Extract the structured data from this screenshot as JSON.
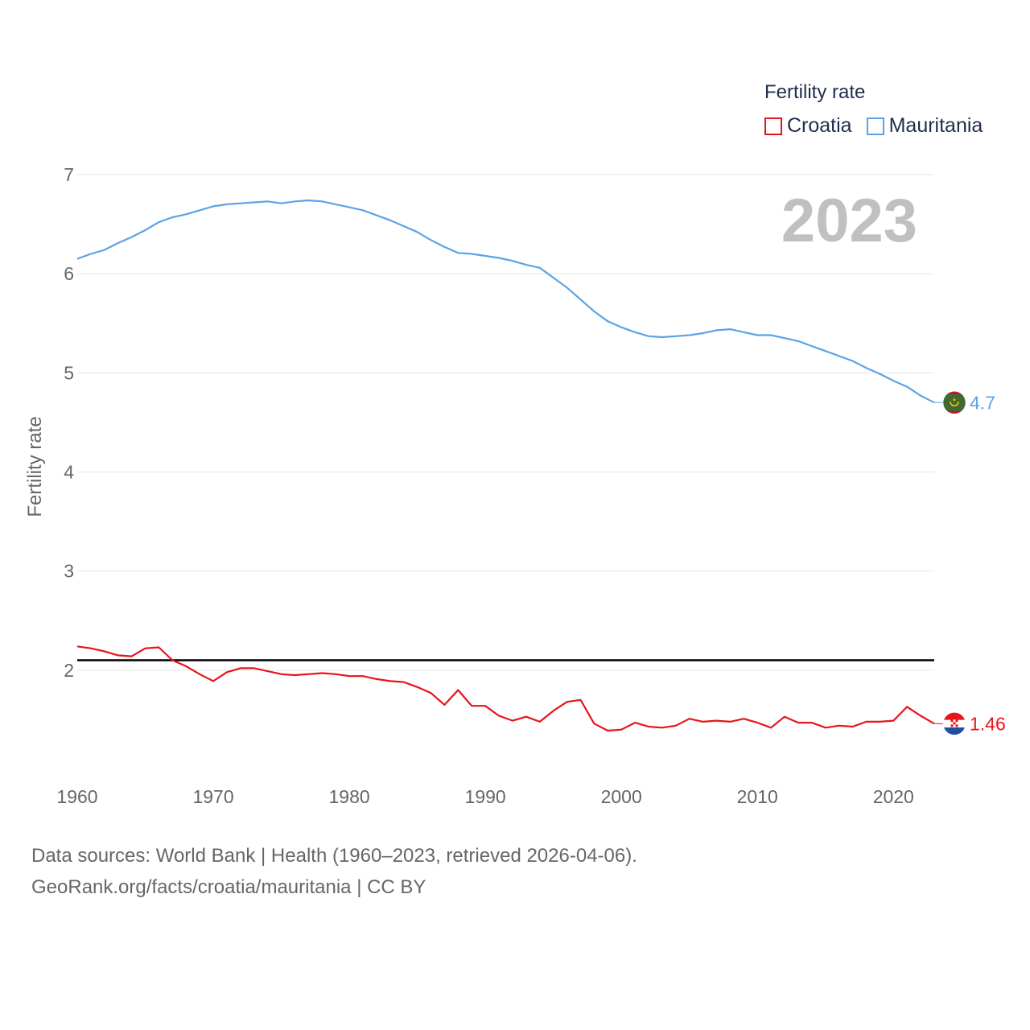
{
  "chart_data": {
    "type": "line",
    "title": "Fertility rate",
    "current_year": "2023",
    "ylabel": "Fertility rate",
    "xlabel": "",
    "xlim": [
      1960,
      2023
    ],
    "ylim": [
      1.0,
      7.0
    ],
    "yticks": [
      2,
      3,
      4,
      5,
      6,
      7
    ],
    "xticks": [
      1960,
      1970,
      1980,
      1990,
      2000,
      2010,
      2020
    ],
    "reference_line": {
      "value": 2.1,
      "color": "#000000"
    },
    "legend": {
      "title": "Fertility rate",
      "placement": "top-right"
    },
    "x": [
      1960,
      1961,
      1962,
      1963,
      1964,
      1965,
      1966,
      1967,
      1968,
      1969,
      1970,
      1971,
      1972,
      1973,
      1974,
      1975,
      1976,
      1977,
      1978,
      1979,
      1980,
      1981,
      1982,
      1983,
      1984,
      1985,
      1986,
      1987,
      1988,
      1989,
      1990,
      1991,
      1992,
      1993,
      1994,
      1995,
      1996,
      1997,
      1998,
      1999,
      2000,
      2001,
      2002,
      2003,
      2004,
      2005,
      2006,
      2007,
      2008,
      2009,
      2010,
      2011,
      2012,
      2013,
      2014,
      2015,
      2016,
      2017,
      2018,
      2019,
      2020,
      2021,
      2022,
      2023
    ],
    "series": [
      {
        "name": "Croatia",
        "color": "#e8131b",
        "end_label": "1.46",
        "flag": "croatia-flag-icon",
        "values": [
          2.24,
          2.22,
          2.19,
          2.15,
          2.14,
          2.22,
          2.23,
          2.1,
          2.04,
          1.96,
          1.89,
          1.98,
          2.02,
          2.02,
          1.99,
          1.96,
          1.95,
          1.96,
          1.97,
          1.96,
          1.94,
          1.94,
          1.91,
          1.89,
          1.88,
          1.83,
          1.77,
          1.65,
          1.8,
          1.64,
          1.64,
          1.54,
          1.49,
          1.53,
          1.48,
          1.59,
          1.68,
          1.7,
          1.46,
          1.39,
          1.4,
          1.47,
          1.43,
          1.42,
          1.44,
          1.51,
          1.48,
          1.49,
          1.48,
          1.51,
          1.47,
          1.42,
          1.53,
          1.47,
          1.47,
          1.42,
          1.44,
          1.43,
          1.48,
          1.48,
          1.49,
          1.63,
          1.54,
          1.46
        ]
      },
      {
        "name": "Mauritania",
        "color": "#5ba3e6",
        "end_label": "4.7",
        "flag": "mauritania-flag-icon",
        "values": [
          6.15,
          6.2,
          6.24,
          6.31,
          6.37,
          6.44,
          6.52,
          6.57,
          6.6,
          6.64,
          6.68,
          6.7,
          6.71,
          6.72,
          6.73,
          6.71,
          6.73,
          6.74,
          6.73,
          6.7,
          6.67,
          6.64,
          6.59,
          6.54,
          6.48,
          6.42,
          6.34,
          6.27,
          6.21,
          6.2,
          6.18,
          6.16,
          6.13,
          6.09,
          6.06,
          5.96,
          5.86,
          5.74,
          5.62,
          5.52,
          5.46,
          5.41,
          5.37,
          5.36,
          5.37,
          5.38,
          5.4,
          5.43,
          5.44,
          5.41,
          5.38,
          5.38,
          5.35,
          5.32,
          5.27,
          5.22,
          5.17,
          5.12,
          5.05,
          4.99,
          4.92,
          4.86,
          4.77,
          4.7
        ]
      }
    ]
  },
  "source": {
    "line1": "Data sources: World Bank | Health (1960–2023, retrieved 2026-04-06).",
    "line2": "GeoRank.org/facts/croatia/mauritania | CC BY"
  }
}
